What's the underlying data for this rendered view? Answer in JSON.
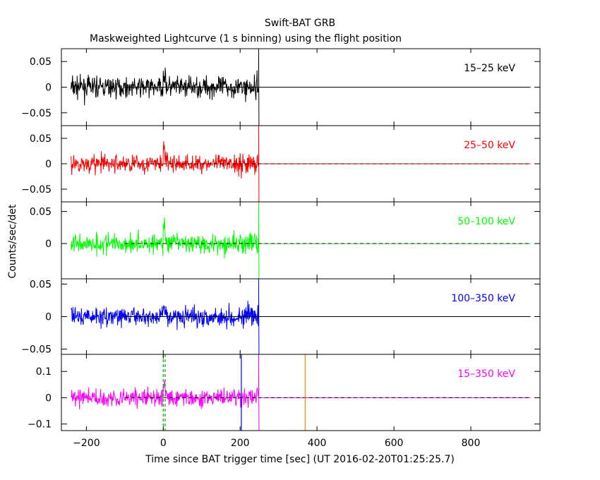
{
  "title": "Swift-BAT GRB",
  "subtitle": "Maskweighted Lightcurve (1 s binning) using the flight position",
  "chart_data": {
    "type": "line",
    "title": "Swift-BAT GRB",
    "subtitle": "Maskweighted Lightcurve (1 s binning) using the flight position",
    "xlabel": "Time since BAT trigger time [sec] (UT 2016-02-20T01:25:25.7)",
    "ylabel": "Counts/sec/det",
    "xlim": [
      -265,
      980
    ],
    "xticks": [
      -200,
      0,
      200,
      400,
      600,
      800
    ],
    "xtick_labels": [
      "−200",
      "0",
      "200",
      "400",
      "600",
      "800"
    ],
    "data_range": [
      -240,
      248
    ],
    "grid": false,
    "panels": [
      {
        "name": "15–25 keV",
        "color": "#000000",
        "ylim": [
          -0.075,
          0.075
        ],
        "yticks": [
          -0.05,
          0,
          0.05
        ],
        "ytick_labels": [
          "−0.05",
          "0",
          "0.05"
        ],
        "noise_sigma": 0.018,
        "peak": 0.025,
        "zero_line_style": "solid"
      },
      {
        "name": "25–50 keV",
        "color": "#ff0000",
        "ylim": [
          -0.075,
          0.075
        ],
        "yticks": [
          -0.05,
          0,
          0.05
        ],
        "ytick_labels": [
          "−0.05",
          "0",
          "0.05"
        ],
        "noise_sigma": 0.016,
        "peak": 0.03,
        "zero_line_style": "dashed"
      },
      {
        "name": "50–100 keV",
        "color": "#00ff00",
        "ylim": [
          -0.055,
          0.065
        ],
        "yticks": [
          0,
          0.05
        ],
        "ytick_labels": [
          "0",
          "0.05"
        ],
        "noise_sigma": 0.014,
        "peak": 0.028,
        "zero_line_style": "dashed"
      },
      {
        "name": "100–350 keV",
        "color": "#0000ff",
        "ylim": [
          -0.058,
          0.058
        ],
        "yticks": [
          -0.05,
          0,
          0.05
        ],
        "ytick_labels": [
          "−0.05",
          "0",
          "0.05"
        ],
        "noise_sigma": 0.013,
        "peak": 0.015,
        "zero_line_style": "solid"
      },
      {
        "name": "15–350 keV",
        "color": "#ff00ff",
        "ylim": [
          -0.125,
          0.165
        ],
        "yticks": [
          -0.1,
          0,
          0.1
        ],
        "ytick_labels": [
          "−0.1",
          "0",
          "0.1"
        ],
        "noise_sigma": 0.03,
        "peak": 0.055,
        "zero_line_style": "dashed",
        "markers": [
          {
            "x": 0,
            "color": "#00aa00",
            "style": "dashed"
          },
          {
            "x": 5,
            "color": "#00aa00",
            "style": "dashed"
          },
          {
            "x": 203,
            "color": "#0000ff",
            "style": "solid"
          },
          {
            "x": 369,
            "color": "#ff8000",
            "style": "solid"
          }
        ]
      }
    ]
  }
}
